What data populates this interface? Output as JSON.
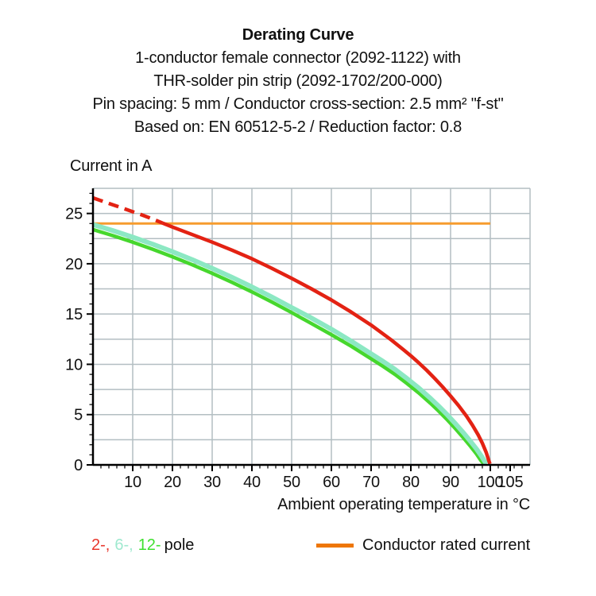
{
  "title_block": {
    "title": "Derating Curve",
    "subtitle_lines": [
      "1-conductor female connector (2092-1122) with",
      "THR-solder pin strip (2092-1702/200-000)",
      "Pin spacing: 5 mm / Conductor cross-section: 2.5 mm² \"f-st\"",
      "Based on: EN 60512-5-2 / Reduction factor: 0.8"
    ]
  },
  "chart_data": {
    "type": "line",
    "title": "Derating Curve",
    "ylabel": "Current in A",
    "xlabel": "Ambient operating temperature in °C",
    "xlim": [
      0,
      110
    ],
    "ylim": [
      0,
      27.5
    ],
    "grid": {
      "color": "#b3bec2",
      "x_lines": [
        10,
        20,
        30,
        40,
        50,
        60,
        70,
        80,
        90,
        100,
        110
      ],
      "y_lines": [
        2.5,
        5,
        7.5,
        10,
        12.5,
        15,
        17.5,
        20,
        22.5,
        25,
        27.5
      ]
    },
    "x_axis": {
      "major_ticks": [
        10,
        20,
        30,
        40,
        50,
        60,
        70,
        80,
        90,
        100,
        105
      ],
      "minor_step": 2,
      "minor_max": 108
    },
    "y_axis": {
      "major_ticks": [
        0,
        5,
        10,
        15,
        20,
        25
      ],
      "minor_step": 1,
      "minor_max": 27
    },
    "series": [
      {
        "name": "Conductor rated current",
        "color": "#f69c2e",
        "width": 3,
        "points": [
          [
            0,
            24
          ],
          [
            100,
            24
          ]
        ]
      },
      {
        "name": "12-pole",
        "color": "#46d72d",
        "width": 4.5,
        "points": [
          [
            0,
            23.4
          ],
          [
            5,
            22.8
          ],
          [
            10,
            22.15
          ],
          [
            15,
            21.45
          ],
          [
            20,
            20.7
          ],
          [
            25,
            19.9
          ],
          [
            30,
            19.05
          ],
          [
            35,
            18.15
          ],
          [
            40,
            17.2
          ],
          [
            45,
            16.2
          ],
          [
            50,
            15.15
          ],
          [
            55,
            14.05
          ],
          [
            60,
            12.95
          ],
          [
            65,
            11.8
          ],
          [
            70,
            10.55
          ],
          [
            73,
            9.8
          ],
          [
            76,
            9.0
          ],
          [
            79,
            8.1
          ],
          [
            82,
            7.15
          ],
          [
            85,
            6.1
          ],
          [
            87,
            5.35
          ],
          [
            89,
            4.55
          ],
          [
            91,
            3.7
          ],
          [
            93,
            2.8
          ],
          [
            95,
            1.85
          ],
          [
            96.5,
            1.1
          ],
          [
            97.6,
            0.45
          ],
          [
            98.4,
            0.08
          ]
        ]
      },
      {
        "name": "6-pole",
        "color": "#8ce8c3",
        "width": 6,
        "points": [
          [
            0,
            23.9
          ],
          [
            5,
            23.3
          ],
          [
            10,
            22.65
          ],
          [
            15,
            21.95
          ],
          [
            20,
            21.2
          ],
          [
            25,
            20.4
          ],
          [
            30,
            19.55
          ],
          [
            35,
            18.65
          ],
          [
            40,
            17.7
          ],
          [
            45,
            16.7
          ],
          [
            50,
            15.65
          ],
          [
            55,
            14.6
          ],
          [
            60,
            13.5
          ],
          [
            65,
            12.3
          ],
          [
            70,
            11.05
          ],
          [
            73,
            10.3
          ],
          [
            76,
            9.5
          ],
          [
            79,
            8.6
          ],
          [
            82,
            7.65
          ],
          [
            85,
            6.6
          ],
          [
            87,
            5.85
          ],
          [
            89,
            5.05
          ],
          [
            91,
            4.2
          ],
          [
            93,
            3.3
          ],
          [
            95,
            2.35
          ],
          [
            96.5,
            1.6
          ],
          [
            97.8,
            0.85
          ],
          [
            98.6,
            0.35
          ],
          [
            99,
            0.1
          ]
        ]
      },
      {
        "name": "2-pole",
        "color": "#e32213",
        "width": 4.5,
        "dash_pattern": "13 8",
        "dash_points": [
          [
            0,
            26.55
          ],
          [
            4,
            26.0
          ],
          [
            8,
            25.45
          ],
          [
            12,
            24.9
          ],
          [
            15,
            24.45
          ],
          [
            17.5,
            24.05
          ]
        ],
        "points": [
          [
            17.5,
            24.05
          ],
          [
            20,
            23.65
          ],
          [
            25,
            22.9
          ],
          [
            30,
            22.15
          ],
          [
            35,
            21.35
          ],
          [
            40,
            20.5
          ],
          [
            45,
            19.55
          ],
          [
            50,
            18.55
          ],
          [
            55,
            17.5
          ],
          [
            60,
            16.4
          ],
          [
            65,
            15.2
          ],
          [
            70,
            13.9
          ],
          [
            75,
            12.45
          ],
          [
            78,
            11.5
          ],
          [
            80,
            10.85
          ],
          [
            82,
            10.15
          ],
          [
            84,
            9.4
          ],
          [
            86,
            8.6
          ],
          [
            88,
            7.75
          ],
          [
            90,
            6.85
          ],
          [
            92,
            5.9
          ],
          [
            94,
            4.85
          ],
          [
            95.5,
            3.95
          ],
          [
            97,
            2.95
          ],
          [
            98,
            2.15
          ],
          [
            99,
            1.2
          ],
          [
            99.6,
            0.45
          ],
          [
            99.9,
            0.1
          ]
        ]
      }
    ]
  },
  "legend": {
    "poles": [
      {
        "label": "2-,",
        "color": "#e8372c"
      },
      {
        "label": "6-,",
        "color": "#9fe9cf"
      },
      {
        "label": "12-",
        "color": "#3fe02f"
      }
    ],
    "pole_suffix": "pole",
    "rated": {
      "label": "Conductor rated current",
      "swatch_color": "#ee7605"
    }
  },
  "colors": {
    "axis": "#000000",
    "text": "#111111",
    "background": "#ffffff"
  }
}
